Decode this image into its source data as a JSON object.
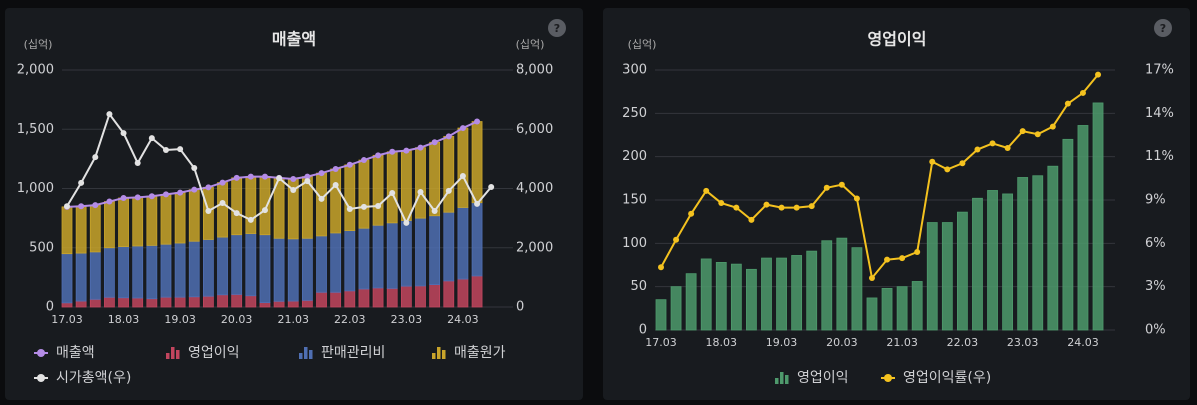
{
  "chart_data": [
    {
      "type": "combo",
      "title": "매출액",
      "y_unit": "(십억)",
      "y2_unit": "(십억)",
      "help": "?",
      "categories": [
        "17.03",
        null,
        null,
        null,
        "18.03",
        null,
        null,
        null,
        "19.03",
        null,
        null,
        null,
        "20.03",
        null,
        null,
        null,
        "21.03",
        null,
        null,
        null,
        "22.03",
        null,
        null,
        null,
        "23.03",
        null,
        null,
        null,
        "24.03",
        null,
        null
      ],
      "ylim": [
        0,
        2000
      ],
      "yticks": [
        0,
        500,
        {
          "value": 1000,
          "label": "1,000"
        },
        {
          "value": 1500,
          "label": "1,500"
        },
        {
          "value": 2000,
          "label": "2,000"
        }
      ],
      "y2lim": [
        0,
        8000
      ],
      "y2ticks": [
        0,
        {
          "value": 2000,
          "label": "2,000"
        },
        {
          "value": 4000,
          "label": "4,000"
        },
        {
          "value": 6000,
          "label": "6,000"
        },
        {
          "value": 8000,
          "label": "8,000"
        }
      ],
      "grid": true,
      "stacked": true,
      "series": [
        {
          "name": "매출액",
          "kind": "line",
          "color": "#b48ce6",
          "values": [
            845,
            850,
            860,
            890,
            920,
            925,
            935,
            950,
            965,
            990,
            1010,
            1050,
            1090,
            1100,
            1100,
            1090,
            1080,
            1100,
            1130,
            1165,
            1200,
            1240,
            1280,
            1310,
            1320,
            1345,
            1390,
            1440,
            1510,
            1565,
            null
          ]
        },
        {
          "name": "영업이익",
          "kind": "bar",
          "color": "#c2455e",
          "values": [
            35,
            50,
            65,
            82,
            78,
            76,
            70,
            83,
            83,
            86,
            91,
            103,
            106,
            95,
            37,
            48,
            50,
            56,
            124,
            124,
            136,
            152,
            161,
            157,
            176,
            178,
            189,
            220,
            236,
            262,
            null
          ]
        },
        {
          "name": "판매관리비",
          "kind": "bar",
          "color": "#4f6fb3",
          "values": [
            415,
            405,
            400,
            418,
            432,
            439,
            450,
            447,
            457,
            469,
            479,
            487,
            504,
            525,
            573,
            532,
            525,
            524,
            476,
            501,
            509,
            513,
            529,
            553,
            554,
            572,
            581,
            580,
            604,
            618,
            null
          ]
        },
        {
          "name": "매출원가",
          "kind": "bar",
          "color": "#c9a42a",
          "values": [
            395,
            395,
            395,
            390,
            410,
            410,
            415,
            420,
            425,
            435,
            440,
            460,
            480,
            480,
            490,
            510,
            505,
            520,
            530,
            540,
            555,
            575,
            590,
            600,
            590,
            595,
            620,
            640,
            670,
            685,
            null
          ]
        },
        {
          "name": "시가총액(우)",
          "kind": "line",
          "axis": "y2",
          "color": "#e2e2e2",
          "values": [
            3400,
            4190,
            5060,
            6510,
            5870,
            4860,
            5700,
            5300,
            5330,
            4690,
            3240,
            3510,
            3170,
            2940,
            3270,
            4350,
            3950,
            4250,
            3650,
            4120,
            3310,
            3380,
            3410,
            3850,
            2840,
            3880,
            3240,
            3920,
            4420,
            3480,
            4050
          ]
        }
      ]
    },
    {
      "type": "combo",
      "title": "영업이익",
      "y_unit": "(십억)",
      "help": "?",
      "categories": [
        "17.03",
        null,
        null,
        null,
        "18.03",
        null,
        null,
        null,
        "19.03",
        null,
        null,
        null,
        "20.03",
        null,
        null,
        null,
        "21.03",
        null,
        null,
        null,
        "22.03",
        null,
        null,
        null,
        "23.03",
        null,
        null,
        null,
        "24.03",
        null
      ],
      "ylim": [
        0,
        300
      ],
      "yticks": [
        0,
        50,
        100,
        150,
        200,
        250,
        300
      ],
      "y2lim": [
        0,
        17
      ],
      "y2ticks": [
        {
          "value": 0,
          "label": "0%"
        },
        {
          "value": 2.833,
          "label": "3%"
        },
        {
          "value": 5.667,
          "label": "6%"
        },
        {
          "value": 8.5,
          "label": "9%"
        },
        {
          "value": 11.333,
          "label": "11%"
        },
        {
          "value": 14.167,
          "label": "14%"
        },
        {
          "value": 17,
          "label": "17%"
        }
      ],
      "grid": true,
      "stacked": false,
      "series": [
        {
          "name": "영업이익",
          "kind": "bar",
          "color": "#4e9a6c",
          "values": [
            35,
            50,
            65,
            82,
            78,
            76,
            70,
            83,
            83,
            86,
            91,
            103,
            106,
            95,
            37,
            48,
            50,
            56,
            124,
            124,
            136,
            152,
            161,
            157,
            176,
            178,
            189,
            220,
            236,
            262
          ]
        },
        {
          "name": "영업이익률(우)",
          "kind": "line",
          "axis": "y2",
          "color": "#f4c21f",
          "values": [
            4.1,
            5.9,
            7.6,
            9.1,
            8.3,
            8.0,
            7.2,
            8.2,
            8.0,
            8.0,
            8.1,
            9.3,
            9.5,
            8.6,
            3.4,
            4.6,
            4.7,
            5.1,
            11.0,
            10.5,
            10.9,
            11.8,
            12.2,
            11.9,
            13.0,
            12.8,
            13.3,
            14.8,
            15.5,
            16.7
          ]
        }
      ]
    }
  ]
}
